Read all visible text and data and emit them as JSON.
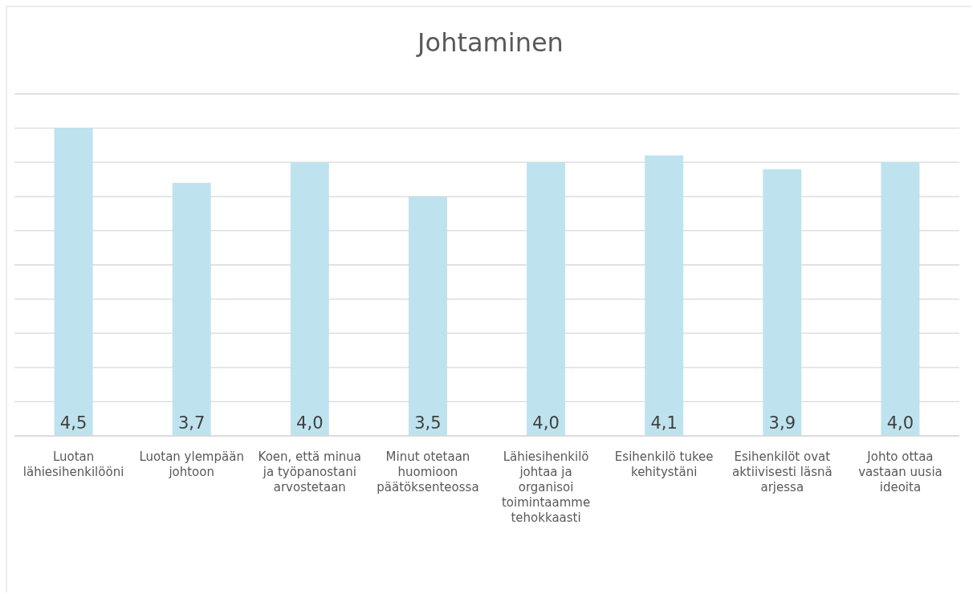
{
  "chart_data": {
    "type": "bar",
    "title": "Johtaminen",
    "categories": [
      "Luotan lähiesihenkilööni",
      "Luotan ylempään johtoon",
      "Koen, että minua ja työpanostani arvostetaan",
      "Minut otetaan huomioon päätöksenteossa",
      "Lähiesihenkilö johtaa ja organisoi toimintaamme tehokkaasti",
      "Esihenkilö tukee kehitystäni",
      "Esihenkilöt ovat aktiivisesti läsnä arjessa",
      "Johto ottaa vastaan uusia ideoita"
    ],
    "values": [
      4.5,
      3.7,
      4.0,
      3.5,
      4.0,
      4.1,
      3.9,
      4.0
    ],
    "value_labels": [
      "4,5",
      "3,7",
      "4,0",
      "3,5",
      "4,0",
      "4,1",
      "3,9",
      "4,0"
    ],
    "color": "#bee3ee",
    "ylim": [
      0,
      5
    ],
    "yticks": [
      {
        "value": 0,
        "label": null
      },
      {
        "value": 0.5,
        "label": null
      },
      {
        "value": 1,
        "label": null
      },
      {
        "value": 1.5,
        "label": null
      },
      {
        "value": 2,
        "label": null
      },
      {
        "value": 2.5,
        "label": null
      },
      {
        "value": 3,
        "label": null
      },
      {
        "value": 3.5,
        "label": null
      },
      {
        "value": 4,
        "label": null
      },
      {
        "value": 4.5,
        "label": null
      },
      {
        "value": 5,
        "label": null
      }
    ],
    "grid": "y",
    "tick_labels": "x"
  }
}
